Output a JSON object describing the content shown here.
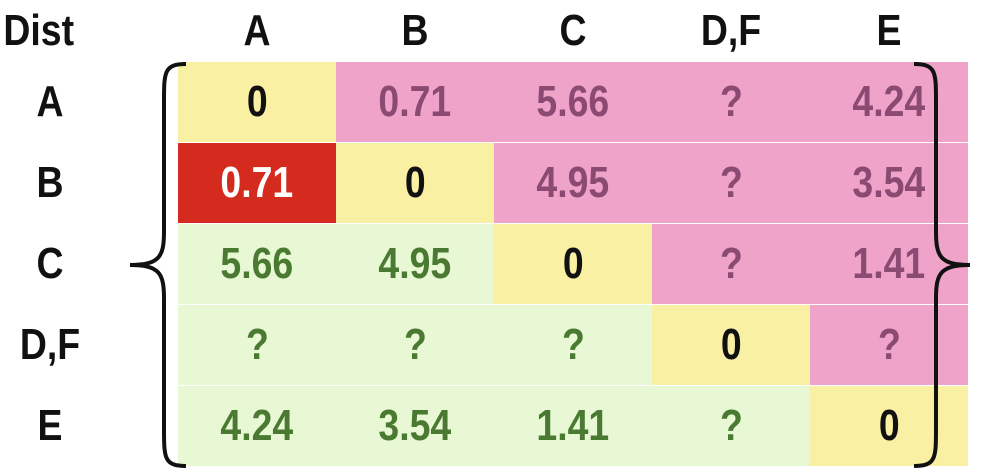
{
  "corner_label": "Dist",
  "columns": [
    "A",
    "B",
    "C",
    "D,F",
    "E"
  ],
  "rows": [
    "A",
    "B",
    "C",
    "D,F",
    "E"
  ],
  "matrix": [
    [
      "0",
      "0.71",
      "5.66",
      "?",
      "4.24"
    ],
    [
      "0.71",
      "0",
      "4.95",
      "?",
      "3.54"
    ],
    [
      "5.66",
      "4.95",
      "0",
      "?",
      "1.41"
    ],
    [
      "?",
      "?",
      "?",
      "0",
      "?"
    ],
    [
      "4.24",
      "3.54",
      "1.41",
      "?",
      "0"
    ]
  ],
  "highlight": {
    "row": 1,
    "col": 0
  },
  "colors": {
    "diagonal_bg": "#faf0a3",
    "upper_bg": "#efa3c8",
    "lower_bg": "#e8f8d4",
    "highlight_bg": "#d52b1e",
    "diagonal_text": "#111111",
    "upper_text": "#8b4a72",
    "lower_text": "#4a7a32",
    "highlight_text": "#ffffff"
  }
}
